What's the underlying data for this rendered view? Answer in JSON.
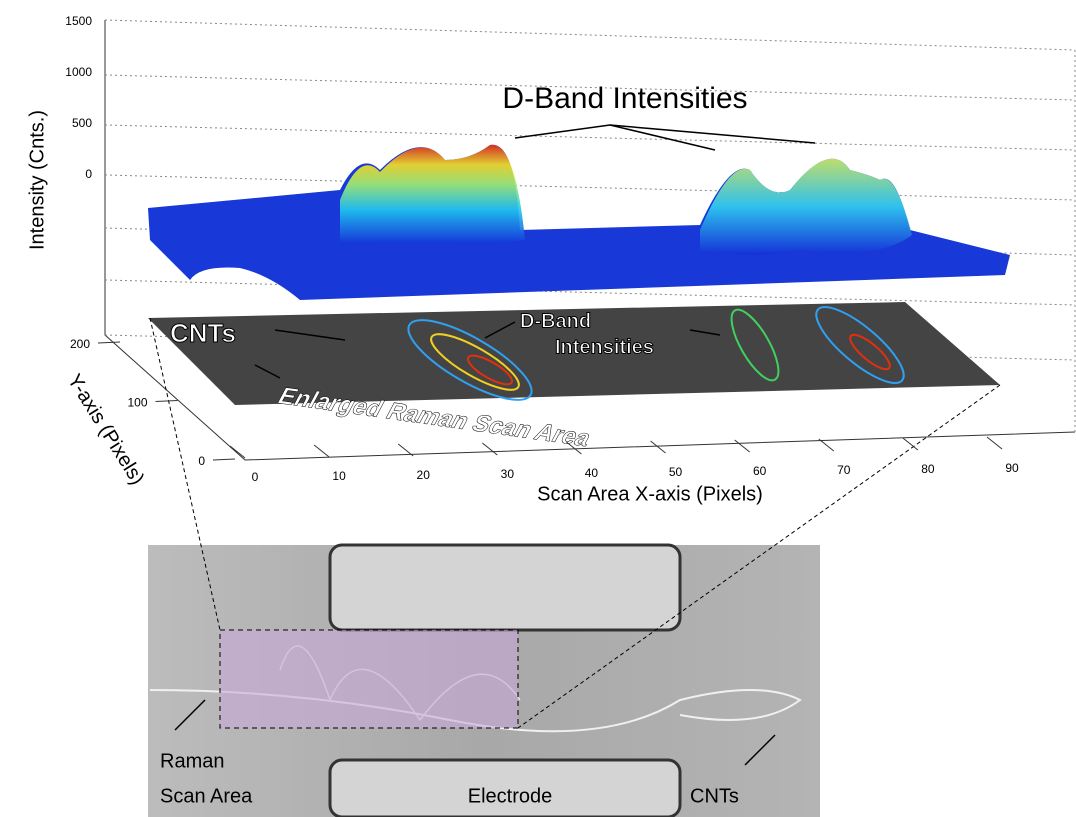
{
  "plot": {
    "z_axis": {
      "label": "Intensity (Cnts.)",
      "ticks": [
        1500,
        1000,
        500,
        0
      ]
    },
    "y_axis": {
      "label": "Y-axis (Pixels)",
      "ticks": [
        200,
        100,
        0
      ]
    },
    "x_axis": {
      "label": "Scan Area X-axis (Pixels)",
      "ticks": [
        0,
        10,
        20,
        30,
        40,
        50,
        60,
        70,
        80,
        90
      ]
    },
    "annotations": {
      "surface_peaks": "D-Band Intensities",
      "map_cnts": "CNTs",
      "map_peaks": [
        "D-Band",
        "Intensities"
      ],
      "map_caption": "Enlarged Raman Scan Area"
    }
  },
  "image": {
    "labels": {
      "scan_area": [
        "Raman",
        "Scan Area"
      ],
      "electrode": "Electrode",
      "cnts": "CNTs"
    }
  }
}
